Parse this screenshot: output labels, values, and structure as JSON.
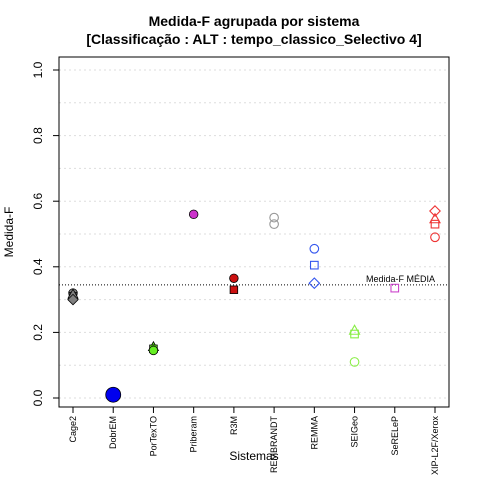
{
  "chart_data": {
    "type": "scatter",
    "title": "Medida-F agrupada por sistema",
    "subtitle": "[Classificação : ALT : tempo_classico_Selectivo 4]",
    "xlabel": "Sistemas",
    "ylabel": "Medida-F",
    "ylim": [
      0,
      1
    ],
    "yticks": [
      "0.0",
      "0.2",
      "0.4",
      "0.6",
      "0.8",
      "1.0"
    ],
    "grid": true,
    "categories": [
      "Cage2",
      "DobrEM",
      "PorTexTO",
      "Priberam",
      "R3M",
      "REMBRANDT",
      "REMMA",
      "SEIGeo",
      "SeRELeP",
      "XIP-L2F/Xerox"
    ],
    "reference_line": {
      "label": "Medida-F MÉDIA",
      "value": 0.345
    },
    "series": [
      {
        "category": "Cage2",
        "color": "#808080",
        "points": [
          {
            "value": 0.32,
            "shape": "circle-filled"
          },
          {
            "value": 0.31,
            "shape": "square-filled"
          },
          {
            "value": 0.315,
            "shape": "triangle-filled"
          },
          {
            "value": 0.3,
            "shape": "diamond-filled"
          }
        ]
      },
      {
        "category": "DobrEM",
        "color": "#0000ee",
        "points": [
          {
            "value": 0.01,
            "shape": "big-circle-filled"
          }
        ]
      },
      {
        "category": "PorTexTO",
        "color": "#66ee22",
        "points": [
          {
            "value": 0.155,
            "shape": "triangle-filled"
          },
          {
            "value": 0.15,
            "shape": "square-filled"
          },
          {
            "value": 0.145,
            "shape": "circle-filled"
          }
        ]
      },
      {
        "category": "Priberam",
        "color": "#cc33cc",
        "points": [
          {
            "value": 0.56,
            "shape": "circle-filled"
          }
        ]
      },
      {
        "category": "R3M",
        "color": "#cc1111",
        "points": [
          {
            "value": 0.365,
            "shape": "circle-filled"
          },
          {
            "value": 0.33,
            "shape": "square-filled"
          }
        ]
      },
      {
        "category": "REMBRANDT",
        "color": "#999999",
        "points": [
          {
            "value": 0.55,
            "shape": "circle-open"
          },
          {
            "value": 0.53,
            "shape": "circle-open"
          }
        ]
      },
      {
        "category": "REMMA",
        "color": "#3355ee",
        "points": [
          {
            "value": 0.455,
            "shape": "circle-open"
          },
          {
            "value": 0.405,
            "shape": "square-open"
          },
          {
            "value": 0.35,
            "shape": "diamond-open"
          }
        ]
      },
      {
        "category": "SEIGeo",
        "color": "#88ee44",
        "points": [
          {
            "value": 0.205,
            "shape": "triangle-open"
          },
          {
            "value": 0.195,
            "shape": "square-open"
          },
          {
            "value": 0.11,
            "shape": "circle-open"
          }
        ]
      },
      {
        "category": "SeRELeP",
        "color": "#cc44cc",
        "points": [
          {
            "value": 0.335,
            "shape": "square-open"
          }
        ]
      },
      {
        "category": "XIP-L2F/Xerox",
        "color": "#ee3333",
        "points": [
          {
            "value": 0.57,
            "shape": "diamond-open"
          },
          {
            "value": 0.545,
            "shape": "triangle-open"
          },
          {
            "value": 0.53,
            "shape": "square-open"
          },
          {
            "value": 0.49,
            "shape": "circle-open"
          }
        ]
      }
    ]
  }
}
